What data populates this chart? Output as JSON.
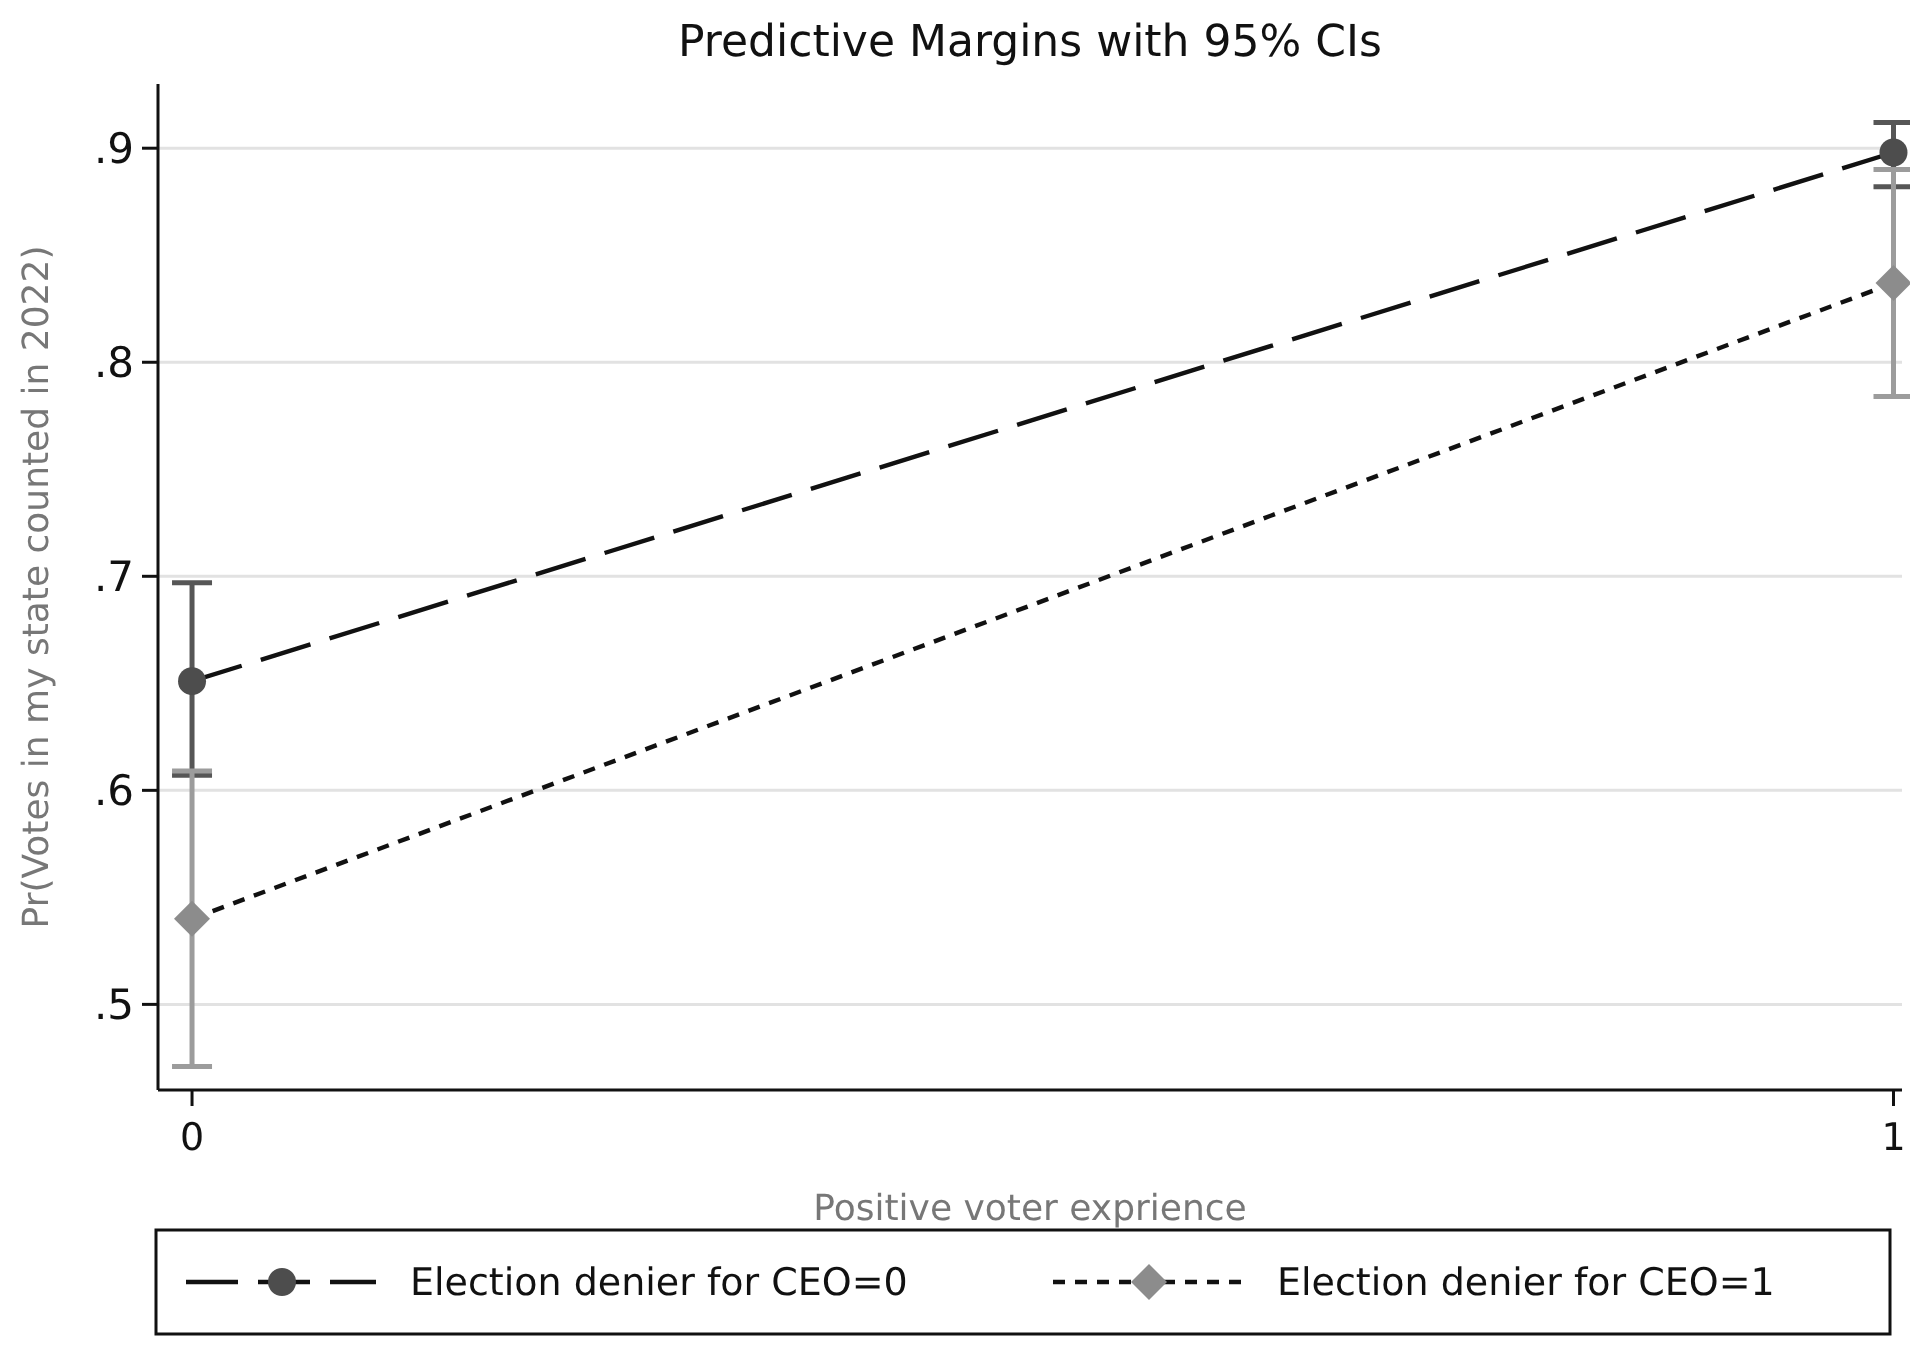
{
  "chart_data": {
    "type": "line",
    "title": "Predictive Margins with 95% CIs",
    "xlabel": "Positive voter exprience",
    "ylabel": "Pr(Votes in my state counted in 2022)",
    "x": [
      0,
      1
    ],
    "series": [
      {
        "name": "Election denier for CEO=0",
        "color": "#4d4d4d",
        "values": [
          0.651,
          0.898
        ],
        "errors": [
          [
            0.607,
            0.697
          ],
          [
            0.882,
            0.912
          ]
        ],
        "marker": "circle",
        "line_style": "dashed"
      },
      {
        "name": "Election denier for CEO=1",
        "color": "#8c8c8c",
        "values": [
          0.54,
          0.837
        ],
        "errors": [
          [
            0.471,
            0.609
          ],
          [
            0.784,
            0.89
          ]
        ],
        "marker": "diamond",
        "line_style": "dotted"
      }
    ],
    "xlim": [
      -0.02,
      1.005
    ],
    "xticks": [
      0,
      1
    ],
    "ylim": [
      0.46,
      0.93
    ],
    "yticks": [
      {
        "value": 0.5,
        "label": ".5"
      },
      {
        "value": 0.6,
        "label": ".6"
      },
      {
        "value": 0.7,
        "label": ".7"
      },
      {
        "value": 0.8,
        "label": ".8"
      },
      {
        "value": 0.9,
        "label": ".9"
      }
    ],
    "grid": "y",
    "legend": "bottom"
  }
}
